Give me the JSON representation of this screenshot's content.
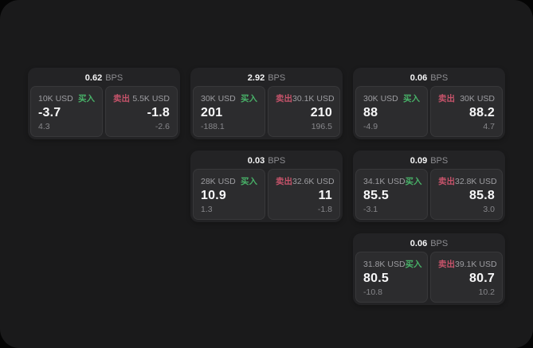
{
  "labels": {
    "buy": "买入",
    "sell": "卖出",
    "bps_unit": "BPS"
  },
  "colors": {
    "buy_green": "#48b168",
    "sell_red": "#c5536a",
    "surface": "#1a1a1b",
    "card": "#232325",
    "panel": "#2c2c2e",
    "value_text": "#f8f8f9",
    "muted_text": "#9d9da1"
  },
  "cards": [
    {
      "bps": "0.62",
      "buy": {
        "amount": "10K USD",
        "price": "-3.7",
        "delta": "4.3"
      },
      "sell": {
        "amount": "5.5K USD",
        "price": "-1.8",
        "delta": "-2.6"
      }
    },
    {
      "bps": "2.92",
      "buy": {
        "amount": "30K USD",
        "price": "201",
        "delta": "-188.1"
      },
      "sell": {
        "amount": "30.1K USD",
        "price": "210",
        "delta": "196.5"
      }
    },
    {
      "bps": "0.06",
      "buy": {
        "amount": "30K USD",
        "price": "88",
        "delta": "-4.9"
      },
      "sell": {
        "amount": "30K USD",
        "price": "88.2",
        "delta": "4.7"
      }
    },
    {
      "bps": "0.03",
      "buy": {
        "amount": "28K USD",
        "price": "10.9",
        "delta": "1.3"
      },
      "sell": {
        "amount": "32.6K USD",
        "price": "11",
        "delta": "-1.8"
      }
    },
    {
      "bps": "0.09",
      "buy": {
        "amount": "34.1K USD",
        "price": "85.5",
        "delta": "-3.1"
      },
      "sell": {
        "amount": "32.8K USD",
        "price": "85.8",
        "delta": "3.0"
      }
    },
    {
      "bps": "0.06",
      "buy": {
        "amount": "31.8K USD",
        "price": "80.5",
        "delta": "-10.8"
      },
      "sell": {
        "amount": "39.1K USD",
        "price": "80.7",
        "delta": "10.2"
      }
    }
  ]
}
